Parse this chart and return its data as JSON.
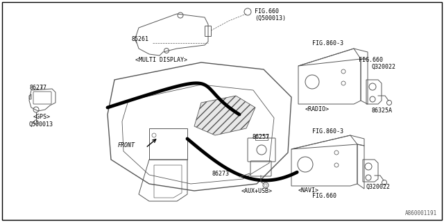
{
  "bg_color": "#ffffff",
  "border_color": "#000000",
  "text_color": "#000000",
  "line_color": "#555555",
  "watermark": "A860001191",
  "figsize": [
    6.4,
    3.2
  ],
  "dpi": 100,
  "parts": {
    "gps": {
      "num": "86277",
      "sub": "<GPS>",
      "sub2": "Q500013"
    },
    "multi_display": {
      "num": "85261",
      "sub": "<MULTI DISPLAY>"
    },
    "radio": {
      "num": "Q320022",
      "sub": "<RADIO>"
    },
    "navi": {
      "num": "Q320022",
      "sub": "<NAVI>"
    },
    "aux_usb_upper": {
      "num": "86257"
    },
    "aux_usb_lower": {
      "num": "86273",
      "sub": "<AUX+USB>"
    },
    "bracket_radio": {
      "num": "86325A"
    }
  },
  "fig_refs": {
    "top_right_a": "FIG.660",
    "top_right_b": "(Q500013)",
    "radio_top": "FIG.860-3",
    "radio_right": "FIG.660",
    "navi_top": "FIG.860-3",
    "navi_bot": "FIG.660"
  }
}
